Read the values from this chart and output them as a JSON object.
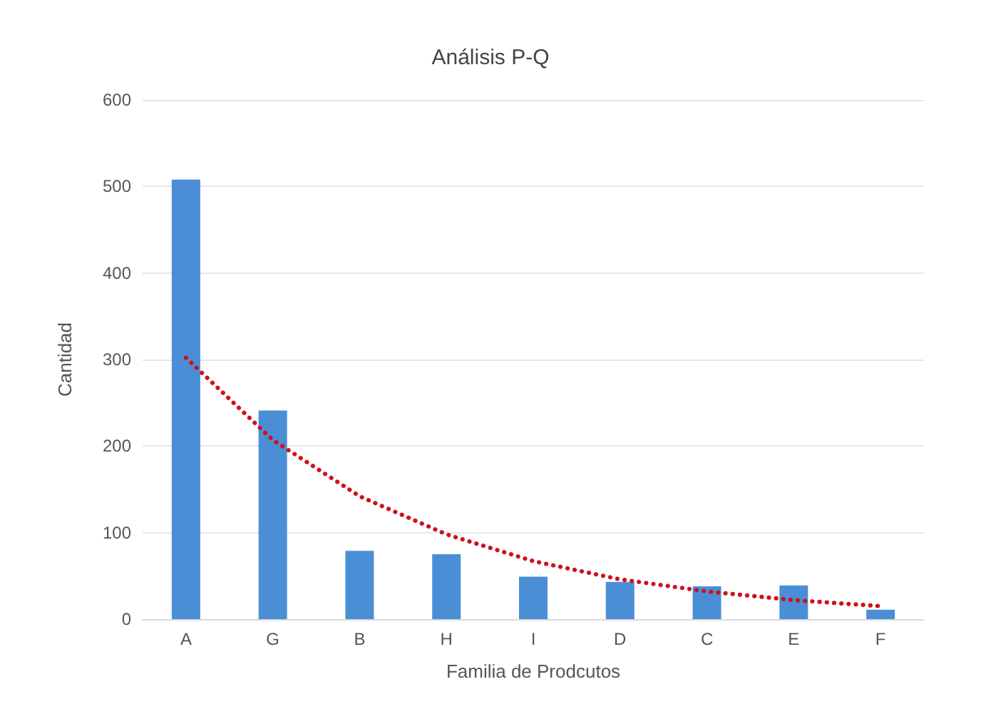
{
  "chart_data": {
    "type": "bar",
    "title": "Análisis P-Q",
    "xlabel": "Familia de Prodcutos",
    "ylabel": "Cantidad",
    "categories": [
      "A",
      "G",
      "B",
      "H",
      "I",
      "D",
      "C",
      "E",
      "F"
    ],
    "series": [
      {
        "color": "#4a8fd6",
        "values": [
          508,
          241,
          79,
          75,
          49,
          43,
          38,
          39,
          11
        ]
      },
      {
        "type": "line",
        "color": "#d0101a",
        "line_style": "dotted",
        "marker": "none",
        "x": [
          "A",
          "G",
          "B",
          "H",
          "I",
          "D",
          "C",
          "E",
          "F"
        ],
        "values": [
          302,
          207,
          142,
          98,
          67,
          46,
          32,
          22,
          15
        ]
      }
    ],
    "ylim": [
      0,
      600
    ],
    "yticks": [
      0,
      100,
      200,
      300,
      400,
      500,
      600
    ],
    "grid": "y"
  }
}
